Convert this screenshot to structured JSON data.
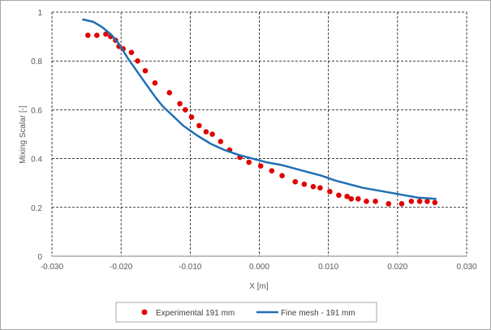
{
  "chart_data": {
    "type": "scatter",
    "xlabel": "X [m]",
    "ylabel": "Mixing Scalar [-]",
    "xlim": [
      -0.03,
      0.03
    ],
    "ylim": [
      0,
      1
    ],
    "x_ticks": [
      -0.03,
      -0.02,
      -0.01,
      0.0,
      0.01,
      0.02,
      0.03
    ],
    "x_tick_labels": [
      "-0.030",
      "-0.020",
      "-0.010",
      "0.000",
      "0.010",
      "0.020",
      "0.030"
    ],
    "y_ticks": [
      0,
      0.2,
      0.4,
      0.6,
      0.8,
      1
    ],
    "y_tick_labels": [
      "0",
      "0.2",
      "0.4",
      "0.6",
      "0.8",
      "1"
    ],
    "grid": "dashed",
    "legend_position": "bottom",
    "series": [
      {
        "name": "Experimental 191 mm",
        "style": "markers",
        "color": "#e00000",
        "points": [
          [
            -0.0248,
            0.905
          ],
          [
            -0.0235,
            0.905
          ],
          [
            -0.0222,
            0.91
          ],
          [
            -0.0215,
            0.9
          ],
          [
            -0.0208,
            0.885
          ],
          [
            -0.0203,
            0.86
          ],
          [
            -0.0197,
            0.85
          ],
          [
            -0.0185,
            0.835
          ],
          [
            -0.0176,
            0.8
          ],
          [
            -0.0165,
            0.76
          ],
          [
            -0.0151,
            0.71
          ],
          [
            -0.013,
            0.67
          ],
          [
            -0.0115,
            0.625
          ],
          [
            -0.0107,
            0.6
          ],
          [
            -0.0098,
            0.57
          ],
          [
            -0.0087,
            0.535
          ],
          [
            -0.0077,
            0.51
          ],
          [
            -0.0068,
            0.5
          ],
          [
            -0.0056,
            0.47
          ],
          [
            -0.0043,
            0.435
          ],
          [
            -0.0028,
            0.405
          ],
          [
            -0.0015,
            0.385
          ],
          [
            0.0002,
            0.37
          ],
          [
            0.0018,
            0.35
          ],
          [
            0.0033,
            0.33
          ],
          [
            0.0052,
            0.305
          ],
          [
            0.0065,
            0.295
          ],
          [
            0.0078,
            0.285
          ],
          [
            0.0088,
            0.28
          ],
          [
            0.0102,
            0.265
          ],
          [
            0.0115,
            0.25
          ],
          [
            0.0127,
            0.245
          ],
          [
            0.0133,
            0.235
          ],
          [
            0.0143,
            0.235
          ],
          [
            0.0155,
            0.225
          ],
          [
            0.0168,
            0.225
          ],
          [
            0.0187,
            0.215
          ],
          [
            0.0206,
            0.215
          ],
          [
            0.022,
            0.225
          ],
          [
            0.0232,
            0.225
          ],
          [
            0.0243,
            0.225
          ],
          [
            0.0254,
            0.22
          ]
        ]
      },
      {
        "name": "Fine mesh - 191 mm",
        "style": "line",
        "color": "#1f6fb5",
        "points": [
          [
            -0.0255,
            0.97
          ],
          [
            -0.024,
            0.96
          ],
          [
            -0.0228,
            0.94
          ],
          [
            -0.0215,
            0.91
          ],
          [
            -0.0203,
            0.87
          ],
          [
            -0.019,
            0.81
          ],
          [
            -0.0175,
            0.75
          ],
          [
            -0.016,
            0.69
          ],
          [
            -0.015,
            0.65
          ],
          [
            -0.014,
            0.615
          ],
          [
            -0.0125,
            0.575
          ],
          [
            -0.011,
            0.535
          ],
          [
            -0.009,
            0.495
          ],
          [
            -0.007,
            0.46
          ],
          [
            -0.005,
            0.435
          ],
          [
            -0.003,
            0.415
          ],
          [
            -0.001,
            0.4
          ],
          [
            0.001,
            0.385
          ],
          [
            0.003,
            0.375
          ],
          [
            0.005,
            0.36
          ],
          [
            0.007,
            0.345
          ],
          [
            0.009,
            0.33
          ],
          [
            0.011,
            0.31
          ],
          [
            0.013,
            0.295
          ],
          [
            0.015,
            0.28
          ],
          [
            0.017,
            0.27
          ],
          [
            0.019,
            0.26
          ],
          [
            0.021,
            0.25
          ],
          [
            0.023,
            0.24
          ],
          [
            0.0255,
            0.235
          ]
        ]
      }
    ]
  }
}
